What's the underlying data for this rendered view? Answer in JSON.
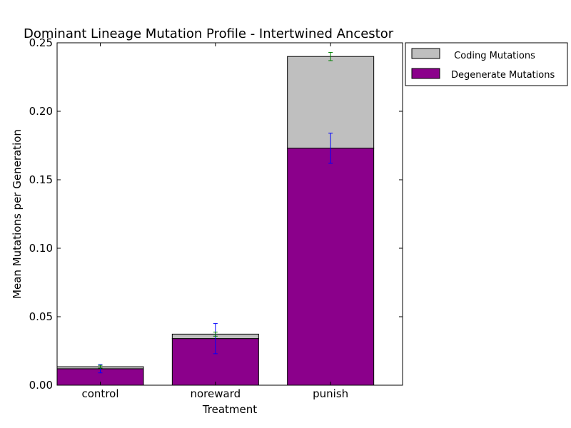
{
  "chart_data": {
    "type": "bar",
    "stacked": true,
    "title": "Dominant Lineage Mutation Profile - Intertwined Ancestor",
    "xlabel": "Treatment",
    "ylabel": "Mean Mutations per Generation",
    "ylim": [
      0,
      0.25
    ],
    "yticks": [
      "0.00",
      "0.05",
      "0.10",
      "0.15",
      "0.20",
      "0.25"
    ],
    "grid": false,
    "legend_position": "outside-top-right",
    "categories": [
      "control",
      "noreward",
      "punish"
    ],
    "series": [
      {
        "name": "Degenerate Mutations",
        "color": "#8b008b",
        "values": [
          0.012,
          0.034,
          0.173
        ],
        "error": [
          0.003,
          0.011,
          0.011
        ],
        "error_color": "#0000ff"
      },
      {
        "name": "Coding Mutations",
        "color": "#bfbfbf",
        "values": [
          0.0015,
          0.0033,
          0.067
        ],
        "error": [
          0.001,
          0.0015,
          0.003
        ],
        "error_color": "#008000"
      }
    ],
    "legend_labels": [
      " Coding Mutations",
      "Degenerate Mutations"
    ]
  }
}
